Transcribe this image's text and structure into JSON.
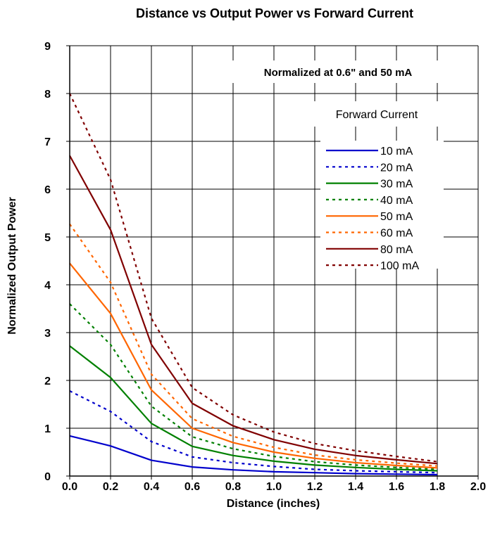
{
  "chart_data": {
    "type": "line",
    "title": "Distance vs Output Power vs Forward Current",
    "xlabel": "Distance (inches)",
    "ylabel": "Normalized Output Power",
    "annotation": "Normalized at 0.6\" and 50 mA",
    "legend_title": "Forward Current",
    "legend_position": "right",
    "grid": true,
    "xlim": [
      0.0,
      2.0
    ],
    "ylim": [
      0,
      9
    ],
    "x_ticks": [
      "0.0",
      "0.2",
      "0.4",
      "0.6",
      "0.8",
      "1.0",
      "1.2",
      "1.4",
      "1.6",
      "1.8",
      "2.0"
    ],
    "y_ticks": [
      "0",
      "1",
      "2",
      "3",
      "4",
      "5",
      "6",
      "7",
      "8",
      "9"
    ],
    "x": [
      0.0,
      0.2,
      0.4,
      0.6,
      0.8,
      1.0,
      1.2,
      1.4,
      1.6,
      1.8
    ],
    "series": [
      {
        "name": "10 mA",
        "color": "#0000cc",
        "dash": "solid",
        "values": [
          0.84,
          0.63,
          0.33,
          0.19,
          0.13,
          0.09,
          0.07,
          0.05,
          0.04,
          0.03
        ]
      },
      {
        "name": "20 mA",
        "color": "#0000cc",
        "dash": "dotted",
        "values": [
          1.78,
          1.35,
          0.72,
          0.4,
          0.28,
          0.2,
          0.14,
          0.11,
          0.09,
          0.07
        ]
      },
      {
        "name": "30 mA",
        "color": "#008000",
        "dash": "solid",
        "values": [
          2.72,
          2.06,
          1.1,
          0.62,
          0.43,
          0.31,
          0.23,
          0.18,
          0.14,
          0.11
        ]
      },
      {
        "name": "40 mA",
        "color": "#008000",
        "dash": "dotted",
        "values": [
          3.6,
          2.75,
          1.46,
          0.82,
          0.57,
          0.41,
          0.3,
          0.23,
          0.18,
          0.14
        ]
      },
      {
        "name": "50 mA",
        "color": "#ff6600",
        "dash": "solid",
        "values": [
          4.45,
          3.4,
          1.8,
          1.0,
          0.7,
          0.5,
          0.37,
          0.28,
          0.22,
          0.17
        ]
      },
      {
        "name": "60 mA",
        "color": "#ff6600",
        "dash": "dotted",
        "values": [
          5.27,
          4.05,
          2.13,
          1.2,
          0.83,
          0.6,
          0.44,
          0.34,
          0.27,
          0.21
        ]
      },
      {
        "name": "80 mA",
        "color": "#800000",
        "dash": "solid",
        "values": [
          6.7,
          5.15,
          2.75,
          1.52,
          1.05,
          0.76,
          0.56,
          0.43,
          0.34,
          0.26
        ]
      },
      {
        "name": "100 mA",
        "color": "#800000",
        "dash": "dotted",
        "values": [
          8.0,
          6.2,
          3.3,
          1.85,
          1.28,
          0.92,
          0.68,
          0.53,
          0.41,
          0.3
        ]
      }
    ]
  }
}
